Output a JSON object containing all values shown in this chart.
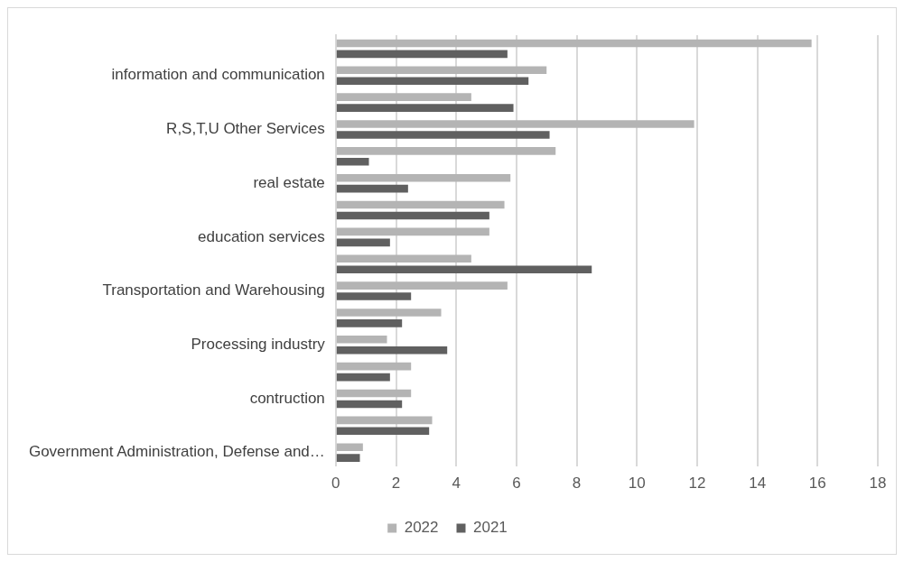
{
  "chart_data": {
    "type": "bar",
    "orientation": "horizontal",
    "categories": [
      null,
      "information and communication",
      null,
      "R,S,T,U Other Services",
      null,
      "real estate",
      null,
      "education services",
      null,
      "Transportation and Warehousing",
      null,
      "Processing industry",
      null,
      "contruction",
      null,
      "Government Administration, Defense and…"
    ],
    "series": [
      {
        "name": "2022",
        "color": "#b4b4b4",
        "values": [
          15.8,
          7.0,
          4.5,
          11.9,
          7.3,
          5.8,
          5.6,
          5.1,
          4.5,
          5.7,
          3.5,
          1.7,
          2.5,
          2.5,
          3.2,
          0.9
        ]
      },
      {
        "name": "2021",
        "color": "#606060",
        "values": [
          5.7,
          6.4,
          5.9,
          7.1,
          1.1,
          2.4,
          5.1,
          1.8,
          8.5,
          2.5,
          2.2,
          3.7,
          1.8,
          2.2,
          3.1,
          0.8
        ]
      }
    ],
    "xlim": [
      0,
      18
    ],
    "xticks": [
      0,
      2,
      4,
      6,
      8,
      10,
      12,
      14,
      16,
      18
    ],
    "grid": "x",
    "legend": "bottom"
  }
}
